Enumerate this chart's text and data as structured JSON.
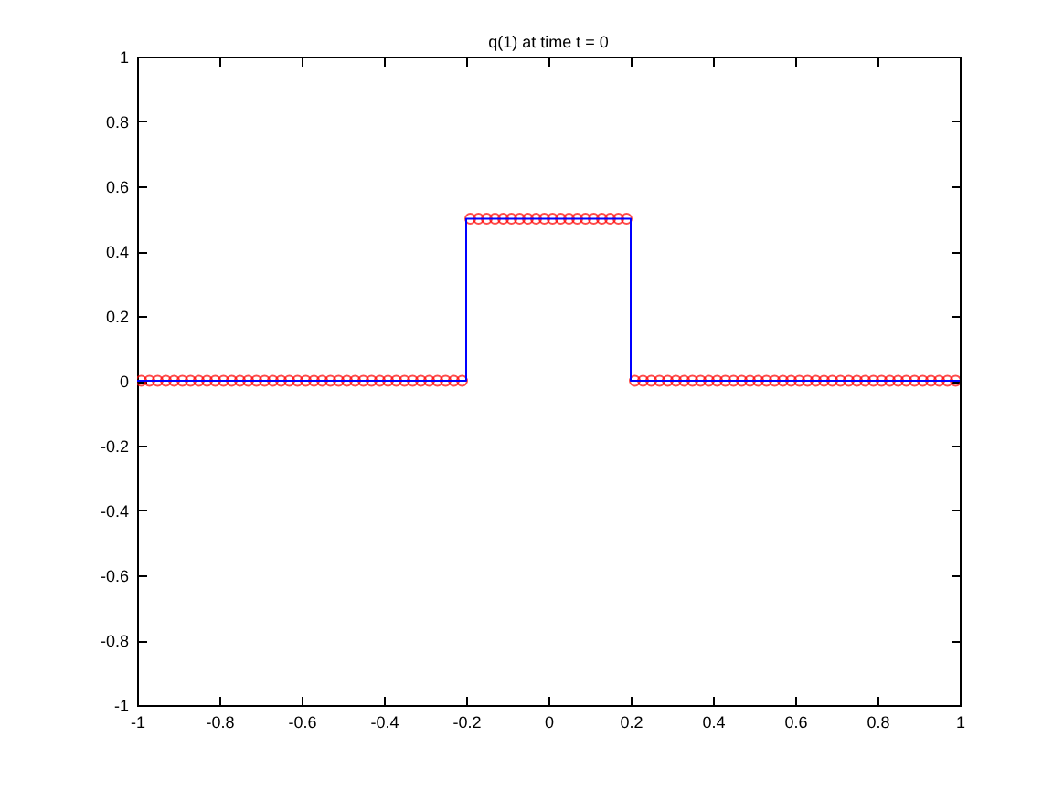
{
  "chart_data": {
    "type": "scatter",
    "title": "q(1)   at time t = 0",
    "xlim": [
      -1,
      1
    ],
    "ylim": [
      -1,
      1
    ],
    "xticks": [
      -1,
      -0.8,
      -0.6,
      -0.4,
      -0.2,
      0,
      0.2,
      0.4,
      0.6,
      0.8,
      1
    ],
    "yticks": [
      -1,
      -0.8,
      -0.6,
      -0.4,
      -0.2,
      0,
      0.2,
      0.4,
      0.6,
      0.8,
      1
    ],
    "series": [
      {
        "color": "#ff0000",
        "marker": "circle",
        "x": [
          -0.99,
          -0.97,
          -0.95,
          -0.93,
          -0.91,
          -0.89,
          -0.87,
          -0.85,
          -0.83,
          -0.81,
          -0.79,
          -0.77,
          -0.75,
          -0.73,
          -0.71,
          -0.69,
          -0.67,
          -0.65,
          -0.63,
          -0.61,
          -0.59,
          -0.57,
          -0.55,
          -0.53,
          -0.51,
          -0.49,
          -0.47,
          -0.45,
          -0.43,
          -0.41,
          -0.39,
          -0.37,
          -0.35,
          -0.33,
          -0.31,
          -0.29,
          -0.27,
          -0.25,
          -0.23,
          -0.21,
          -0.19,
          -0.17,
          -0.15,
          -0.13,
          -0.11,
          -0.09,
          -0.07,
          -0.05,
          -0.03,
          -0.01,
          0.01,
          0.03,
          0.05,
          0.07,
          0.09,
          0.11,
          0.13,
          0.15,
          0.17,
          0.19,
          0.21,
          0.23,
          0.25,
          0.27,
          0.29,
          0.31,
          0.33,
          0.35,
          0.37,
          0.39,
          0.41,
          0.43,
          0.45,
          0.47,
          0.49,
          0.51,
          0.53,
          0.55,
          0.57,
          0.59,
          0.61,
          0.63,
          0.65,
          0.67,
          0.69,
          0.71,
          0.73,
          0.75,
          0.77,
          0.79,
          0.81,
          0.83,
          0.85,
          0.87,
          0.89,
          0.91,
          0.93,
          0.95,
          0.97,
          0.99
        ],
        "values": [
          0,
          0,
          0,
          0,
          0,
          0,
          0,
          0,
          0,
          0,
          0,
          0,
          0,
          0,
          0,
          0,
          0,
          0,
          0,
          0,
          0,
          0,
          0,
          0,
          0,
          0,
          0,
          0,
          0,
          0,
          0,
          0,
          0,
          0,
          0,
          0,
          0,
          0,
          0,
          0,
          0.5,
          0.5,
          0.5,
          0.5,
          0.5,
          0.5,
          0.5,
          0.5,
          0.5,
          0.5,
          0.5,
          0.5,
          0.5,
          0.5,
          0.5,
          0.5,
          0.5,
          0.5,
          0.5,
          0.5,
          0,
          0,
          0,
          0,
          0,
          0,
          0,
          0,
          0,
          0,
          0,
          0,
          0,
          0,
          0,
          0,
          0,
          0,
          0,
          0,
          0,
          0,
          0,
          0,
          0,
          0,
          0,
          0,
          0,
          0,
          0,
          0,
          0,
          0,
          0,
          0,
          0,
          0,
          0,
          0
        ]
      },
      {
        "type": "line",
        "color": "#0000ff",
        "line_style": "solid",
        "x": [
          -1,
          -0.2,
          -0.2,
          0.2,
          0.2,
          1
        ],
        "values": [
          0,
          0,
          0.5,
          0.5,
          0,
          0
        ]
      }
    ]
  }
}
